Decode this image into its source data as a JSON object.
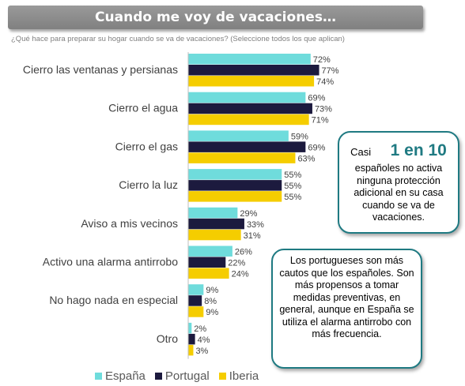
{
  "header": {
    "title": "Cuando me voy de vacaciones…",
    "subtitle": "¿Qué hace para preparar su hogar cuando se va de vacaciones? (Seleccione todos los que aplican)"
  },
  "colors": {
    "espana": "#6fdcdc",
    "portugal": "#1c1a3e",
    "iberia": "#f5cd00",
    "accent": "#1f7a82"
  },
  "chart_data": {
    "type": "bar",
    "orientation": "horizontal",
    "categories": [
      "Cierro las ventanas y persianas",
      "Cierro el agua",
      "Cierro el gas",
      "Cierro la luz",
      "Aviso a mis vecinos",
      "Activo una alarma antirrobo",
      "No hago nada en especial",
      "Otro"
    ],
    "series": [
      {
        "name": "España",
        "values": [
          72,
          69,
          59,
          55,
          29,
          26,
          9,
          2
        ]
      },
      {
        "name": "Portugal",
        "values": [
          77,
          73,
          69,
          55,
          33,
          22,
          8,
          4
        ]
      },
      {
        "name": "Iberia",
        "values": [
          74,
          71,
          63,
          55,
          31,
          24,
          9,
          3
        ]
      }
    ],
    "value_suffix": "%",
    "legend": "bottom",
    "grid": false
  },
  "callouts": {
    "first": {
      "prefix": "Casi",
      "highlight": "1 en 10",
      "text": "españoles no activa ninguna protección adicional en su casa cuando se va de vacaciones."
    },
    "second": {
      "text": "Los portugueses son más cautos que los españoles. Son más propensos a tomar medidas preventivas, en general, aunque en España se utiliza el alarma antirrobo con más frecuencia."
    }
  }
}
